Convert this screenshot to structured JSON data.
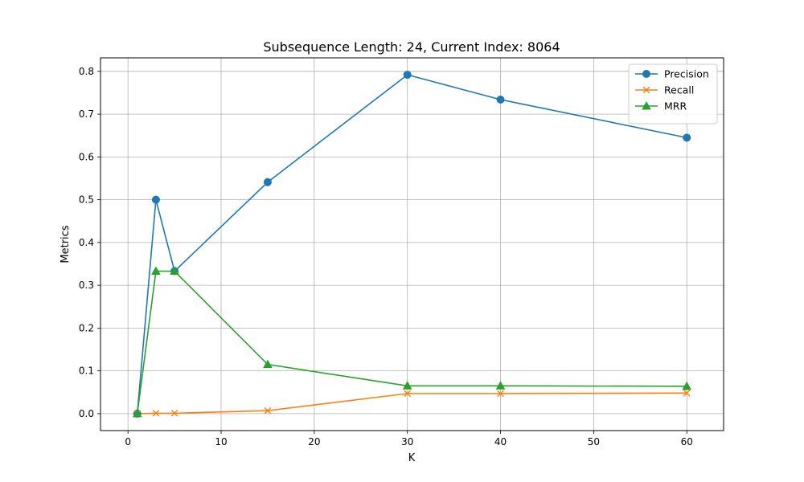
{
  "chart_data": {
    "type": "line",
    "title": "Subsequence Length: 24, Current Index: 8064",
    "xlabel": "K",
    "ylabel": "Metrics",
    "x": [
      1,
      3,
      5,
      15,
      30,
      40,
      60
    ],
    "xlim": [
      -2.95,
      63.95
    ],
    "ylim": [
      -0.0396,
      0.8316
    ],
    "xticks": [
      0,
      10,
      20,
      30,
      40,
      50,
      60
    ],
    "yticks": [
      0.0,
      0.1,
      0.2,
      0.3,
      0.4,
      0.5,
      0.6,
      0.7,
      0.8
    ],
    "grid": true,
    "legend_position": "top-right",
    "series": [
      {
        "name": "Precision",
        "marker": "circle",
        "color": "#1f77b4",
        "values": [
          0.0,
          0.5,
          0.333,
          0.541,
          0.792,
          0.734,
          0.645
        ]
      },
      {
        "name": "Recall",
        "marker": "x",
        "color": "#ff7f0e",
        "values": [
          0.0,
          0.001,
          0.001,
          0.007,
          0.047,
          0.047,
          0.048
        ]
      },
      {
        "name": "MRR",
        "marker": "triangle",
        "color": "#2ca02c",
        "values": [
          0.0,
          0.333,
          0.333,
          0.115,
          0.065,
          0.065,
          0.064
        ]
      }
    ]
  }
}
